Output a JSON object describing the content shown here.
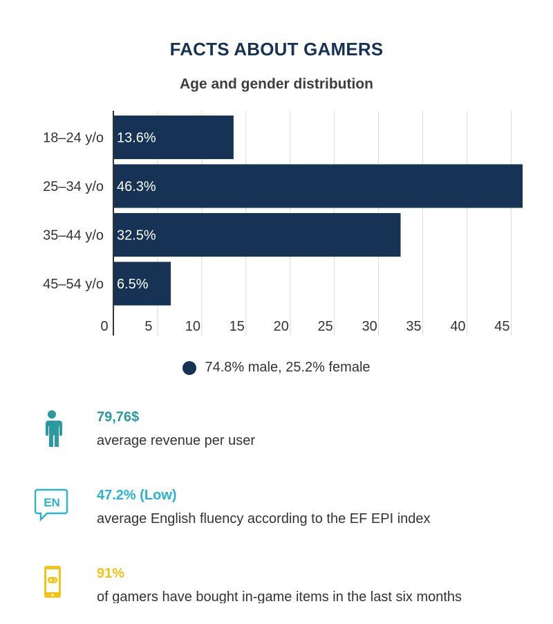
{
  "header": {
    "title": "FACTS ABOUT GAMERS",
    "subtitle": "Age and gender distribution"
  },
  "colors": {
    "bar": "#163356",
    "title": "#163356",
    "teal": "#2a9aa0",
    "cyan": "#29b3d0",
    "yellow": "#f3c318"
  },
  "chart_data": {
    "type": "bar",
    "orientation": "horizontal",
    "title": "Age and gender distribution",
    "categories": [
      "18–24 y/o",
      "25–34 y/o",
      "35–44 y/o",
      "45–54 y/o"
    ],
    "values": [
      13.6,
      46.3,
      32.5,
      6.5
    ],
    "data_labels": [
      "13.6%",
      "46.3%",
      "32.5%",
      "6.5%"
    ],
    "x_ticks": [
      0,
      5,
      10,
      15,
      20,
      25,
      30,
      35,
      40,
      45
    ],
    "xlim": [
      0,
      46.3
    ],
    "grid": true,
    "legend": {
      "label": "74.8% male, 25.2% female",
      "placement": "bottom-center"
    }
  },
  "facts": [
    {
      "icon": "person-icon",
      "value": "79,76$",
      "description": "average revenue per user",
      "color": "#2a9aa0"
    },
    {
      "icon": "language-en-icon",
      "value": "47.2% (Low)",
      "description": "average English fluency according to the EF EPI index",
      "color": "#29b3d0"
    },
    {
      "icon": "mobile-game-icon",
      "value": "91%",
      "description": "of gamers have bought in-game items in the last six months",
      "color": "#f3c318"
    }
  ]
}
